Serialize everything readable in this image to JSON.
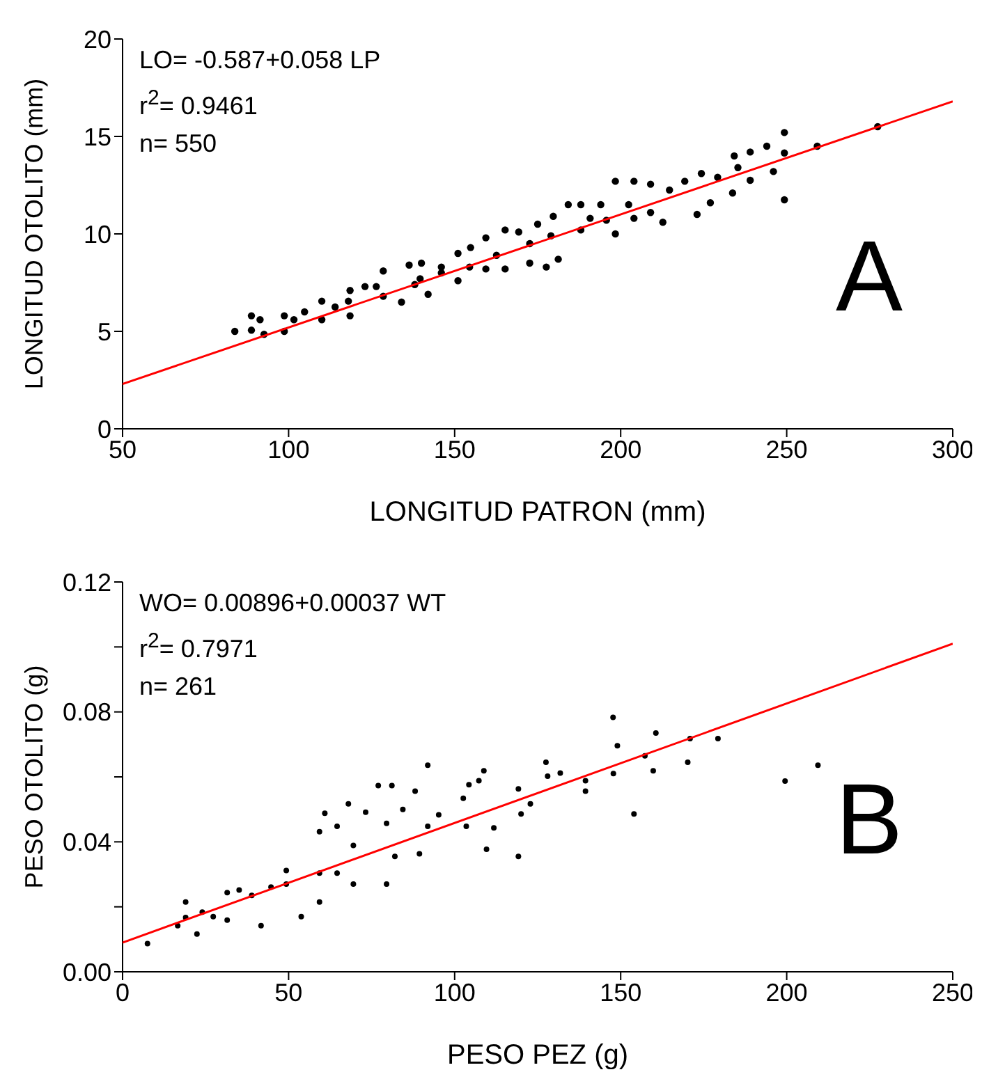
{
  "chart_data": [
    {
      "type": "scatter",
      "xlabel": "LONGITUD PATRON (mm)",
      "ylabel": "LONGITUD OTOLITO (mm)",
      "xlim": [
        50,
        300
      ],
      "xticks": [
        50,
        100,
        150,
        200,
        250,
        300
      ],
      "ylim": [
        0,
        20
      ],
      "yticks": [
        0,
        5,
        10,
        15,
        20
      ],
      "grid": false,
      "annotations": [
        "LO= -0.587+0.058 LP",
        "r$^{2}$= 0.9461",
        "n= 550",
        "A"
      ],
      "series": [
        {
          "color": "#000000",
          "marker": "circle",
          "x": [
            83.8,
            88.8,
            88.8,
            91.4,
            92.6,
            98.7,
            98.7,
            101.6,
            104.8,
            110,
            110,
            114,
            118.5,
            118.5,
            123,
            128.5,
            128.5,
            134,
            136.3,
            140,
            142,
            146,
            151,
            151,
            154.8,
            159.4,
            159.4,
            165.2,
            165.2,
            169.3,
            172.6,
            175,
            177.6,
            179.7,
            181.2,
            184.2,
            188,
            188,
            190.8,
            194,
            198.4,
            198.4,
            204,
            204,
            209,
            209,
            212.7,
            214.7,
            219.3,
            223,
            224.3,
            227,
            229.2,
            233.7,
            234.2,
            235.3,
            239,
            239,
            244,
            246,
            249.3,
            249.3,
            249.3,
            259.2,
            277.4,
            146,
            162.6,
            139.6,
            126.4,
            118,
            138,
            154.5,
            172.6,
            179,
            195.7,
            202.4
          ],
          "values": [
            5.0,
            5.8,
            5.06,
            5.6,
            4.85,
            5.8,
            5.0,
            5.6,
            6.0,
            6.55,
            5.6,
            6.25,
            7.1,
            5.8,
            7.3,
            8.1,
            6.8,
            6.5,
            8.4,
            8.5,
            6.9,
            8.0,
            9.0,
            7.6,
            9.3,
            9.8,
            8.2,
            10.2,
            8.2,
            10.1,
            8.5,
            10.5,
            8.3,
            10.9,
            8.7,
            11.5,
            11.5,
            10.2,
            10.8,
            11.5,
            12.7,
            10.0,
            12.7,
            10.8,
            12.55,
            11.1,
            10.6,
            12.25,
            12.7,
            11.0,
            13.1,
            11.6,
            12.9,
            12.1,
            14.0,
            13.4,
            14.2,
            12.75,
            14.5,
            13.2,
            15.2,
            14.15,
            11.75,
            14.5,
            15.5,
            8.3,
            8.9,
            7.7,
            7.3,
            6.55,
            7.4,
            8.3,
            9.5,
            9.9,
            10.7,
            11.5
          ]
        },
        {
          "type": "line",
          "marker": "none",
          "color": "#ff0000",
          "x": [
            50,
            300
          ],
          "values": [
            2.3,
            16.8
          ]
        }
      ]
    },
    {
      "type": "scatter",
      "xlabel": "PESO PEZ (g)",
      "ylabel": "PESO OTOLITO (g)",
      "xlim": [
        0,
        250
      ],
      "xticks": [
        0,
        50,
        100,
        150,
        200,
        250
      ],
      "ylim": [
        0,
        0.12
      ],
      "yticks": [
        {
          "value": 0,
          "label": "0.00"
        },
        {
          "value": 0.02,
          "label": null
        },
        {
          "value": 0.04,
          "label": "0.04"
        },
        {
          "value": 0.06,
          "label": null
        },
        {
          "value": 0.08,
          "label": "0.08"
        },
        {
          "value": 0.1,
          "label": null
        },
        {
          "value": 0.12,
          "label": "0.12"
        }
      ],
      "grid": false,
      "annotations": [
        "WO= 0.00896+0.00037 WT",
        "r$^{2}$= 0.7971",
        "n= 261",
        "B"
      ],
      "series": [
        {
          "color": "#000000",
          "marker": "circle",
          "x": [
            7.5,
            16.6,
            19,
            19,
            22.4,
            24,
            27.3,
            31.5,
            31.5,
            35.1,
            38.9,
            41.7,
            44.7,
            49.3,
            49.3,
            53.8,
            59.3,
            59.3,
            59.3,
            60.9,
            64.6,
            64.6,
            68,
            69.5,
            69.5,
            73.2,
            77,
            79.5,
            79.5,
            81.1,
            82,
            84.4,
            88.1,
            89.4,
            91.9,
            91.9,
            95.2,
            102.6,
            103.5,
            104.3,
            107.3,
            108.8,
            109.6,
            111.8,
            119.2,
            119.2,
            120,
            122.8,
            127.5,
            128,
            131.8,
            139.4,
            139.4,
            147.7,
            147.8,
            149,
            154,
            157.3,
            159.8,
            160.6,
            170.2,
            170.9,
            179.3,
            199.5,
            209.4
          ],
          "values": [
            0.0087,
            0.0142,
            0.0167,
            0.0215,
            0.0116,
            0.0184,
            0.017,
            0.0244,
            0.0159,
            0.0252,
            0.0235,
            0.0142,
            0.0261,
            0.0312,
            0.027,
            0.017,
            0.0431,
            0.0304,
            0.0215,
            0.0488,
            0.0448,
            0.0304,
            0.0517,
            0.027,
            0.0389,
            0.0491,
            0.0573,
            0.027,
            0.0457,
            0.0573,
            0.0355,
            0.05,
            0.0556,
            0.0363,
            0.0636,
            0.0448,
            0.0483,
            0.0534,
            0.0448,
            0.0576,
            0.0588,
            0.0619,
            0.0377,
            0.0443,
            0.0563,
            0.0355,
            0.0486,
            0.0517,
            0.0645,
            0.0602,
            0.0612,
            0.0588,
            0.0556,
            0.0783,
            0.061,
            0.0696,
            0.0486,
            0.0665,
            0.0619,
            0.0735,
            0.0645,
            0.0718,
            0.0718,
            0.0587,
            0.0636
          ]
        },
        {
          "type": "line",
          "marker": "none",
          "color": "#ff0000",
          "x": [
            0,
            250
          ],
          "values": [
            0.009,
            0.101
          ]
        }
      ]
    }
  ]
}
